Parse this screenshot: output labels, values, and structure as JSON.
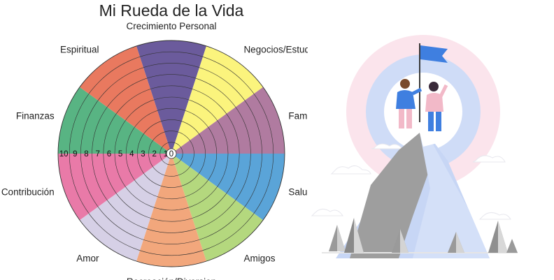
{
  "chart_data": {
    "type": "pie",
    "title": "Mi Rueda de la Vida",
    "categories": [
      "Crecimiento Personal",
      "Negocios/Estudios",
      "Familia",
      "Salud",
      "Amigos",
      "Recreación/Diversion",
      "Amor",
      "Contribución",
      "Finanzas",
      "Espiritual"
    ],
    "values": [
      10,
      10,
      10,
      10,
      10,
      10,
      10,
      10,
      10,
      10
    ],
    "colors": [
      "#6b5b9c",
      "#fbf47d",
      "#b07ba0",
      "#5aa4d8",
      "#b4d87e",
      "#f2a77c",
      "#d6d0e6",
      "#e97aa8",
      "#58b483",
      "#e9795f"
    ],
    "rings": 10,
    "scale_labels": [
      "10",
      "9",
      "8",
      "7",
      "6",
      "5",
      "4",
      "3",
      "2",
      "1",
      "0"
    ],
    "rlim": [
      0,
      10
    ]
  },
  "illustration": {
    "icon": "mountain-summit-illustration",
    "colors": {
      "outer_ring": "#fbe4ec",
      "inner_ring": "#cfdcf7",
      "mountain_light": "#c7d6f5",
      "mountain_gray": "#9e9e9e",
      "flag": "#3f7fe0"
    }
  }
}
